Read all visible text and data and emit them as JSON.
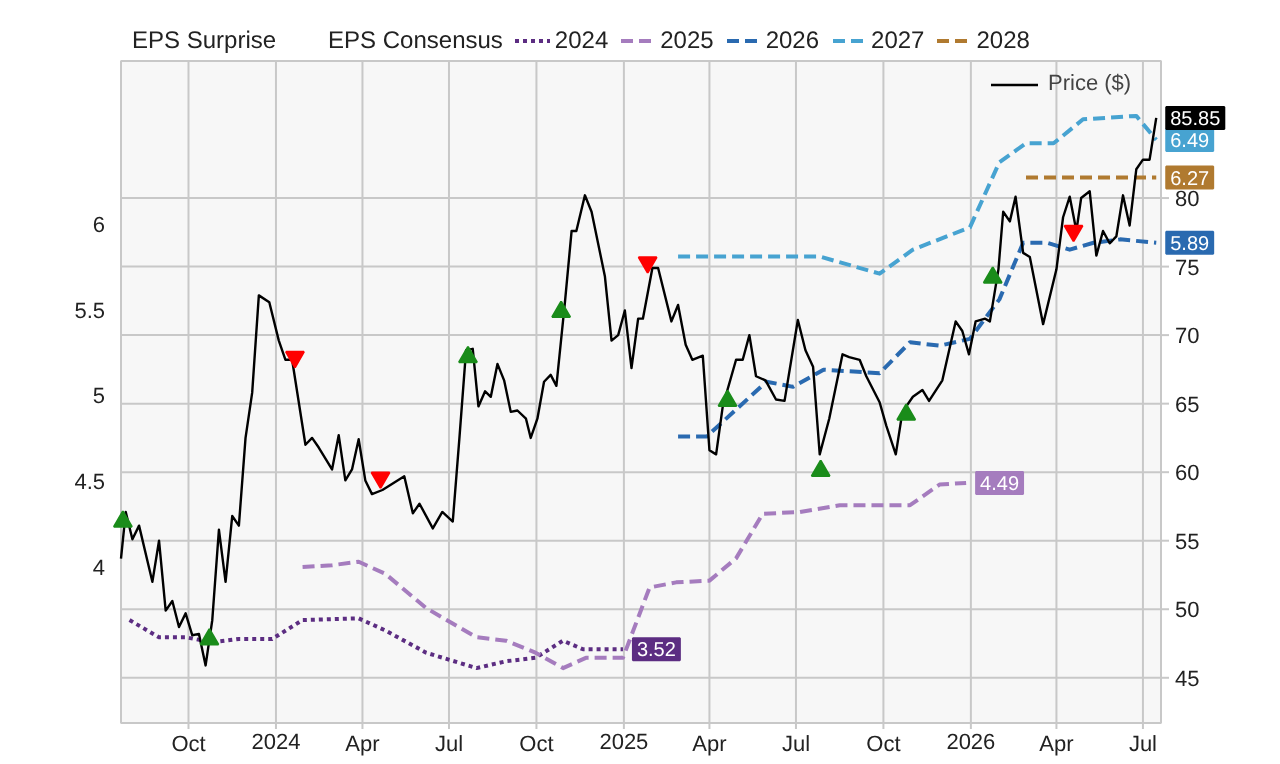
{
  "chart_data": {
    "type": "line",
    "annotations": [
      "EPS Surprise"
    ],
    "legend_title": "EPS Consensus",
    "legend": "top",
    "grid": true,
    "xlim": [
      "2023-07-22",
      "2026-07-20"
    ],
    "xticks": [
      {
        "value": "2023-10-01",
        "label": "Oct"
      },
      {
        "value": "2024-01-01",
        "label": "2024"
      },
      {
        "value": "2024-04-01",
        "label": "Apr"
      },
      {
        "value": "2024-07-01",
        "label": "Jul"
      },
      {
        "value": "2024-10-01",
        "label": "Oct"
      },
      {
        "value": "2025-01-01",
        "label": "2025"
      },
      {
        "value": "2025-04-01",
        "label": "Apr"
      },
      {
        "value": "2025-07-01",
        "label": "Jul"
      },
      {
        "value": "2025-10-01",
        "label": "Oct"
      },
      {
        "value": "2026-01-01",
        "label": "2026"
      },
      {
        "value": "2026-04-01",
        "label": "Apr"
      },
      {
        "value": "2026-07-01",
        "label": "Jul"
      }
    ],
    "ylim": [
      3.09,
      6.95
    ],
    "yticks": [
      4,
      4.5,
      5,
      5.5,
      6
    ],
    "y2lim": [
      41.7,
      90
    ],
    "y2ticks": [
      45,
      50,
      55,
      60,
      65,
      70,
      75,
      80
    ],
    "series": [
      {
        "name": "2024",
        "color": "#5c2d82",
        "line_style": "dotted",
        "x": [
          "2023-07-31",
          "2023-08-31",
          "2023-09-28",
          "2023-10-26",
          "2023-11-23",
          "2023-12-28",
          "2024-01-29",
          "2024-03-28",
          "2024-04-25",
          "2024-06-07",
          "2024-07-30",
          "2024-08-30",
          "2024-09-30",
          "2024-10-29",
          "2024-11-19",
          "2024-12-31"
        ],
        "values": [
          3.69,
          3.59,
          3.59,
          3.56,
          3.58,
          3.58,
          3.69,
          3.7,
          3.63,
          3.5,
          3.41,
          3.45,
          3.47,
          3.57,
          3.52,
          3.52
        ],
        "value_labels": [
          null,
          null,
          null,
          null,
          null,
          null,
          null,
          null,
          null,
          null,
          null,
          null,
          null,
          null,
          null,
          "3.52"
        ]
      },
      {
        "name": "2025",
        "color": "#a57cbe",
        "line_style": "dashed",
        "x": [
          "2024-01-29",
          "2024-02-29",
          "2024-03-28",
          "2024-04-25",
          "2024-06-07",
          "2024-07-30",
          "2024-08-30",
          "2024-09-30",
          "2024-10-29",
          "2024-11-22",
          "2024-12-31",
          "2025-01-28",
          "2025-02-25",
          "2025-04-01",
          "2025-04-29",
          "2025-05-27",
          "2025-07-05",
          "2025-08-16",
          "2025-10-29",
          "2025-11-29",
          "2025-12-27"
        ],
        "values": [
          4.0,
          4.01,
          4.03,
          3.96,
          3.76,
          3.59,
          3.57,
          3.5,
          3.41,
          3.47,
          3.47,
          3.88,
          3.91,
          3.92,
          4.05,
          4.31,
          4.32,
          4.36,
          4.36,
          4.48,
          4.49
        ],
        "value_labels": [
          null,
          null,
          null,
          null,
          null,
          null,
          null,
          null,
          null,
          null,
          null,
          null,
          null,
          null,
          null,
          null,
          null,
          null,
          null,
          null,
          "4.49"
        ]
      },
      {
        "name": "2026",
        "color": "#2a6ab0",
        "line_style": "dashed",
        "x": [
          "2025-02-27",
          "2025-03-29",
          "2025-05-31",
          "2025-06-28",
          "2025-07-30",
          "2025-09-27",
          "2025-10-29",
          "2025-11-29",
          "2025-12-31",
          "2026-01-31",
          "2026-02-25",
          "2026-03-22",
          "2026-04-15",
          "2026-05-10",
          "2026-06-07",
          "2026-07-15"
        ],
        "values": [
          4.76,
          4.76,
          5.08,
          5.05,
          5.15,
          5.13,
          5.31,
          5.29,
          5.33,
          5.56,
          5.89,
          5.89,
          5.85,
          5.89,
          5.91,
          5.89
        ],
        "value_labels": [
          null,
          null,
          null,
          null,
          null,
          null,
          null,
          null,
          null,
          null,
          null,
          null,
          null,
          null,
          null,
          "5.89"
        ]
      },
      {
        "name": "2027",
        "color": "#47a3d1",
        "line_style": "dashed",
        "x": [
          "2025-02-27",
          "2025-07-26",
          "2025-09-27",
          "2025-11-01",
          "2025-12-31",
          "2026-01-31",
          "2026-02-28",
          "2026-03-29",
          "2026-04-29",
          "2026-06-24",
          "2026-07-15"
        ],
        "values": [
          5.81,
          5.81,
          5.71,
          5.85,
          5.98,
          6.36,
          6.47,
          6.47,
          6.61,
          6.63,
          6.49
        ],
        "value_labels": [
          null,
          null,
          null,
          null,
          null,
          null,
          null,
          null,
          null,
          null,
          "6.49"
        ]
      },
      {
        "name": "2028",
        "color": "#b07a30",
        "line_style": "dashed",
        "x": [
          "2026-02-28",
          "2026-07-15"
        ],
        "values": [
          6.27,
          6.27
        ],
        "value_labels": [
          null,
          "6.27"
        ]
      },
      {
        "name": "Price ($)",
        "color": "#000000",
        "line_style": "solid",
        "axis": "y2",
        "x": [
          "2023-07-22",
          "2023-07-27",
          "2023-08-03",
          "2023-08-10",
          "2023-08-24",
          "2023-08-31",
          "2023-09-07",
          "2023-09-14",
          "2023-09-21",
          "2023-09-28",
          "2023-10-05",
          "2023-10-12",
          "2023-10-19",
          "2023-10-26",
          "2023-11-02",
          "2023-11-09",
          "2023-11-16",
          "2023-11-23",
          "2023-11-30",
          "2023-12-07",
          "2023-12-14",
          "2023-12-25",
          "2024-01-04",
          "2024-01-11",
          "2024-01-18",
          "2024-02-01",
          "2024-02-08",
          "2024-02-15",
          "2024-02-29",
          "2024-03-07",
          "2024-03-14",
          "2024-03-21",
          "2024-03-28",
          "2024-04-04",
          "2024-04-11",
          "2024-04-22",
          "2024-05-15",
          "2024-05-24",
          "2024-05-31",
          "2024-06-14",
          "2024-06-24",
          "2024-07-05",
          "2024-07-12",
          "2024-07-19",
          "2024-07-26",
          "2024-08-01",
          "2024-08-08",
          "2024-08-14",
          "2024-08-21",
          "2024-08-28",
          "2024-09-04",
          "2024-09-11",
          "2024-09-20",
          "2024-09-25",
          "2024-10-02",
          "2024-10-09",
          "2024-10-16",
          "2024-10-22",
          "2024-10-31",
          "2024-11-07",
          "2024-11-12",
          "2024-11-21",
          "2024-11-28",
          "2024-12-12",
          "2024-12-19",
          "2024-12-26",
          "2025-01-02",
          "2025-01-09",
          "2025-01-16",
          "2025-01-21",
          "2025-01-31",
          "2025-02-06",
          "2025-02-20",
          "2025-02-27",
          "2025-03-07",
          "2025-03-14",
          "2025-03-25",
          "2025-04-01",
          "2025-04-08",
          "2025-04-15",
          "2025-04-29",
          "2025-05-06",
          "2025-05-13",
          "2025-05-20",
          "2025-05-30",
          "2025-06-10",
          "2025-06-19",
          "2025-07-03",
          "2025-07-11",
          "2025-07-19",
          "2025-07-26",
          "2025-08-05",
          "2025-08-19",
          "2025-08-26",
          "2025-09-06",
          "2025-09-13",
          "2025-09-27",
          "2025-10-04",
          "2025-10-14",
          "2025-10-21",
          "2025-11-01",
          "2025-11-11",
          "2025-11-18",
          "2025-12-02",
          "2025-12-16",
          "2025-12-23",
          "2025-12-30",
          "2026-01-06",
          "2026-01-16",
          "2026-01-21",
          "2026-01-30",
          "2026-02-04",
          "2026-02-11",
          "2026-02-17",
          "2026-02-25",
          "2026-03-04",
          "2026-03-18",
          "2026-04-01",
          "2026-04-08",
          "2026-04-15",
          "2026-04-22",
          "2026-04-27",
          "2026-05-06",
          "2026-05-13",
          "2026-05-20",
          "2026-05-27",
          "2026-06-03",
          "2026-06-10",
          "2026-06-17",
          "2026-06-24",
          "2026-07-01",
          "2026-07-08",
          "2026-07-15"
        ],
        "values": [
          53.7,
          57.1,
          55.1,
          56.1,
          52.0,
          55.0,
          49.9,
          50.6,
          48.7,
          49.7,
          48.1,
          48.2,
          45.9,
          49.2,
          55.8,
          52.0,
          56.8,
          56.1,
          62.5,
          65.8,
          72.9,
          72.4,
          69.6,
          68.2,
          68.2,
          62.0,
          62.5,
          61.8,
          60.2,
          62.7,
          59.4,
          60.2,
          62.4,
          59.4,
          58.4,
          58.7,
          59.7,
          57.0,
          57.7,
          55.9,
          57.1,
          56.4,
          62.5,
          68.9,
          69.0,
          64.8,
          65.9,
          65.5,
          67.9,
          66.7,
          64.4,
          64.5,
          63.9,
          62.5,
          63.9,
          66.6,
          67.1,
          66.3,
          72.4,
          77.6,
          77.6,
          80.2,
          79.0,
          74.3,
          69.6,
          70.0,
          71.8,
          67.6,
          71.2,
          71.2,
          74.9,
          74.9,
          71.0,
          72.2,
          69.3,
          68.2,
          68.5,
          61.6,
          61.3,
          64.8,
          68.2,
          68.2,
          70.0,
          67.0,
          66.7,
          65.3,
          65.2,
          71.1,
          68.9,
          67.7,
          61.3,
          63.9,
          68.6,
          68.4,
          68.2,
          67.0,
          65.1,
          63.4,
          61.3,
          64.4,
          65.5,
          66.0,
          65.2,
          66.7,
          71.0,
          70.3,
          68.6,
          71.0,
          71.2,
          71.0,
          74.8,
          79.0,
          78.3,
          80.1,
          76.0,
          75.7,
          70.8,
          74.8,
          78.6,
          80.1,
          77.6,
          80.0,
          80.5,
          75.8,
          77.6,
          76.7,
          77.2,
          80.2,
          78.0,
          82.1,
          82.8,
          82.8,
          85.85
        ],
        "value_labels": [
          null,
          null,
          null,
          null,
          null,
          null,
          null,
          null,
          null,
          null,
          null,
          null,
          null,
          null,
          null,
          null,
          null,
          null,
          null,
          null,
          null,
          null,
          null,
          null,
          null,
          null,
          null,
          null,
          null,
          null,
          null,
          null,
          null,
          null,
          null,
          null,
          null,
          null,
          null,
          null,
          null,
          null,
          null,
          null,
          null,
          null,
          null,
          null,
          null,
          null,
          null,
          null,
          null,
          null,
          null,
          null,
          null,
          null,
          null,
          null,
          null,
          null,
          null,
          null,
          null,
          null,
          null,
          null,
          null,
          null,
          null,
          null,
          null,
          null,
          null,
          null,
          null,
          null,
          null,
          null,
          null,
          null,
          null,
          null,
          null,
          null,
          null,
          null,
          null,
          null,
          null,
          null,
          null,
          null,
          null,
          null,
          null,
          null,
          null,
          null,
          null,
          null,
          null,
          null,
          null,
          null,
          null,
          null,
          null,
          null,
          null,
          null,
          null,
          null,
          null,
          null,
          null,
          null,
          null,
          null,
          null,
          null,
          null,
          null,
          null,
          null,
          null,
          null,
          null,
          null,
          null,
          null,
          "85.85"
        ]
      },
      {
        "type": "scatter",
        "color": "#1a8c1a",
        "marker": "triangle",
        "axis": "y2",
        "x": [
          "2023-07-24",
          "2023-10-23",
          "2024-07-21",
          "2024-10-27",
          "2025-04-20",
          "2025-07-27",
          "2025-10-25",
          "2026-01-24"
        ],
        "values": [
          56.4,
          47.8,
          68.4,
          71.7,
          65.2,
          60.1,
          64.2,
          74.2
        ]
      },
      {
        "type": "scatter",
        "color": "#ff0000",
        "marker": "triangle-down",
        "axis": "y2",
        "x": [
          "2024-01-21",
          "2024-04-20",
          "2025-01-26",
          "2026-04-19"
        ],
        "values": [
          68.4,
          59.6,
          75.3,
          77.6
        ]
      }
    ]
  }
}
